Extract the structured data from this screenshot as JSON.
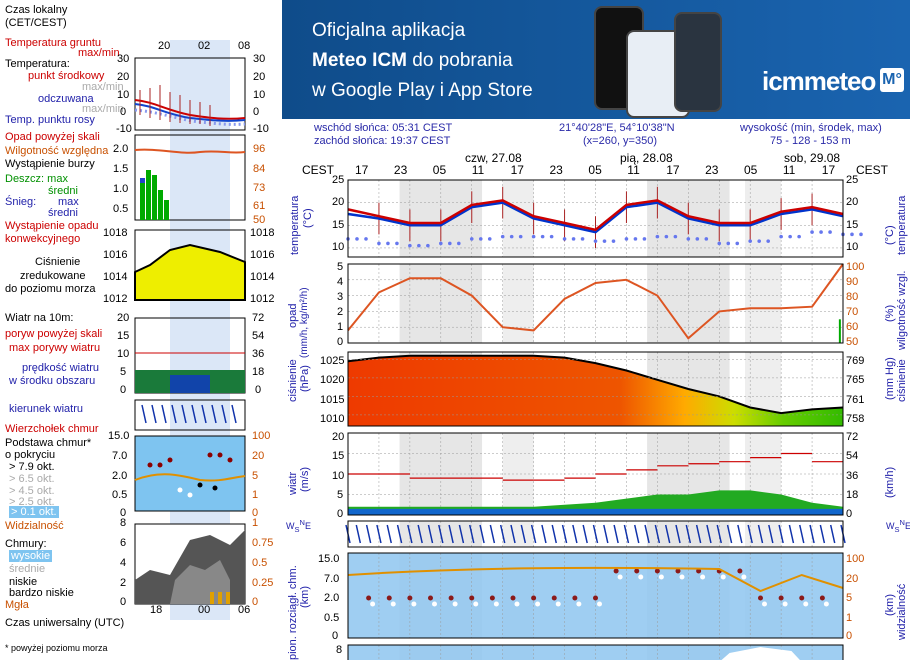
{
  "banner": {
    "line1": "Oficjalna aplikacja",
    "line2_bold": "Meteo ICM",
    "line2_rest": " do pobrania",
    "line3": "w Google Play i App Store",
    "logo": "icmmeteo",
    "logo_badge": "M°"
  },
  "info": {
    "sunrise": "wschód słońca: 05:31 CEST",
    "sunset": "zachód słońca: 19:37 CEST",
    "coords": "21°40'28\"E, 54°10'38\"N",
    "grid": "(x=260,  y=350)",
    "elev_label": "wysokość (min, środek, max)",
    "elev_values": "75 - 128 - 153 m"
  },
  "legend": {
    "time_local": "Czas lokalny",
    "time_local2": "(CET/CEST)",
    "ground_temp": "Temperatura gruntu",
    "ground_temp2": "max/min",
    "temperature": "Temperatura:",
    "mid_point": "punkt środkowy",
    "max_min": "max/min",
    "felt": "odczuwana",
    "felt_maxmin": "max/min",
    "dew_point": "Temp. punktu rosy",
    "precip_above": "Opad powyżej skali",
    "humidity": "Wilgotność względna",
    "storm": "Wystąpienie burzy",
    "rain": "Deszcz: max",
    "rain_mid": "średni",
    "snow": "Śnieg:",
    "snow_max": "max",
    "snow_mid": "średni",
    "convective": "Wystąpienie opadu",
    "convective2": "konwekcyjnego",
    "pressure1": "Ciśnienie",
    "pressure2": "zredukowane",
    "pressure3": "do poziomu morza",
    "wind_at": "Wiatr na 10m:",
    "gust_above": "poryw powyżej skali",
    "gust_max": "max porywy wiatru",
    "wind_speed": "prędkość wiatru",
    "wind_speed2": "w środku obszaru",
    "wind_dir": "kierunek wiatru",
    "cloud_top": "Wierzchołek chmur",
    "cloud_base": "Podstawa chmur*",
    "cloud_base2": "o pokryciu",
    "c79": "> 7.9 okt.",
    "c65": "> 6.5 okt.",
    "c45": "> 4.5 okt.",
    "c25": "> 2.5 okt.",
    "c01": "> 0.1 okt.",
    "visibility": "Widzialność",
    "clouds": "Chmury:",
    "high": "wysokie",
    "mid": "średnie",
    "low": "niskie",
    "very_low": "bardzo niskie",
    "fog": "Mgła",
    "utc": "Czas uniwersalny (UTC)",
    "footnote": "* powyżej poziomu morza"
  },
  "mini_axes": {
    "top_ticks": [
      "20",
      "02",
      "08"
    ],
    "bottom_ticks": [
      "18",
      "00",
      "06"
    ],
    "temp_left": [
      "30",
      "20",
      "10",
      "0",
      "-10"
    ],
    "temp_right": [
      "30",
      "20",
      "10",
      "0",
      "-10"
    ],
    "precip_left": [
      "2.0",
      "1.5",
      "1.0",
      "0.5"
    ],
    "precip_right": [
      "96",
      "84",
      "73",
      "61",
      "50"
    ],
    "press_left": [
      "1018",
      "1016",
      "1014",
      "1012"
    ],
    "press_right": [
      "1018",
      "1016",
      "1014",
      "1012"
    ],
    "wind_left": [
      "20",
      "15",
      "10",
      "5",
      "0"
    ],
    "wind_right": [
      "72",
      "54",
      "36",
      "18",
      "0"
    ],
    "cbase_left": [
      "15.0",
      "7.0",
      "2.0",
      "0.5",
      "0"
    ],
    "cbase_right": [
      "100",
      "20",
      "5",
      "1",
      "0"
    ],
    "cloud_left": [
      "8",
      "6",
      "4",
      "2",
      "0"
    ],
    "cloud_right": [
      "1",
      "0.75",
      "0.5",
      "0.25",
      "0"
    ]
  },
  "main": {
    "tz": "CEST",
    "days": [
      "czw, 27.08",
      "pią, 28.08",
      "sob, 29.08"
    ],
    "hours": [
      "17",
      "23",
      "05",
      "11",
      "17",
      "23",
      "05",
      "11",
      "17",
      "23",
      "05",
      "11",
      "17"
    ],
    "temp_title": "temperatura",
    "temp_unit": "(°C)",
    "temp_ticks": [
      "25",
      "20",
      "15",
      "10"
    ],
    "precip_title": "opad",
    "precip_unit": "(mm/h, kg/m²/h)",
    "precip_ticks": [
      "5",
      "4",
      "3",
      "2",
      "1",
      "0"
    ],
    "hum_title": "wilgotność wzgl.",
    "hum_unit": "(%)",
    "hum_ticks": [
      "100",
      "90",
      "80",
      "70",
      "60",
      "50"
    ],
    "press_title": "ciśnienie",
    "press_unit": "(hPa)",
    "press_ticks": [
      "1025",
      "1020",
      "1015",
      "1010"
    ],
    "press_mm_unit": "(mm Hg)",
    "press_mm_ticks": [
      "769",
      "765",
      "761",
      "758"
    ],
    "wind_title": "wiatr",
    "wind_unit": "(m/s)",
    "wind_ticks": [
      "20",
      "15",
      "10",
      "5",
      "0"
    ],
    "wind_kmh_unit": "(km/h)",
    "wind_kmh_ticks": [
      "72",
      "54",
      "36",
      "18",
      "0"
    ],
    "cloud_title": "pion. rozciągł. chm.",
    "cloud_unit": "(km)",
    "cloud_ticks": [
      "15.0",
      "7.0",
      "2.0",
      "0.5",
      "0"
    ],
    "vis_title": "widzialność",
    "vis_unit": "(km)",
    "vis_ticks": [
      "100",
      "20",
      "5",
      "1",
      "0"
    ],
    "bottom_tick": "8"
  },
  "chart_data": [
    {
      "type": "line",
      "title": "temperatura",
      "ylabel": "(°C)",
      "ylim": [
        8,
        25
      ],
      "x_hours": [
        0,
        3,
        6,
        9,
        12,
        15,
        18,
        21,
        24,
        27,
        30,
        33,
        36,
        39,
        42,
        45,
        48
      ],
      "series": [
        {
          "name": "punkt środkowy",
          "values": [
            18.5,
            17,
            15.5,
            15.5,
            19.5,
            20.5,
            17,
            15.5,
            14,
            19.5,
            20.5,
            17,
            15.5,
            15.5,
            18,
            19,
            17.5
          ]
        },
        {
          "name": "odczuwana",
          "values": [
            17.5,
            16.5,
            15,
            15,
            19,
            20,
            16.5,
            15,
            13.5,
            19,
            20,
            16.5,
            15,
            15,
            17.5,
            18.5,
            17
          ]
        },
        {
          "name": "Temp. punktu rosy",
          "values": [
            12,
            11,
            10.5,
            11,
            12,
            12.5,
            12.5,
            12,
            11.5,
            12,
            12.5,
            12,
            11,
            11.5,
            12.5,
            13.5,
            13
          ]
        }
      ]
    },
    {
      "type": "line",
      "title": "wilgotność wzgl.",
      "ylabel": "(%)",
      "ylim": [
        50,
        100
      ],
      "x_hours": [
        0,
        3,
        6,
        9,
        12,
        15,
        18,
        21,
        24,
        27,
        30,
        33,
        36,
        39,
        42,
        45,
        48
      ],
      "series": [
        {
          "name": "wilgotność",
          "values": [
            58,
            82,
            91,
            91,
            80,
            60,
            58,
            78,
            88,
            90,
            80,
            53,
            70,
            72,
            72,
            73,
            100
          ]
        }
      ]
    },
    {
      "type": "area",
      "title": "ciśnienie",
      "ylabel": "(hPa)",
      "ylim": [
        1007,
        1027
      ],
      "x_hours": [
        0,
        3,
        6,
        9,
        12,
        15,
        18,
        21,
        24,
        27,
        30,
        33,
        36,
        39,
        42,
        45,
        48
      ],
      "series": [
        {
          "name": "ciśnienie",
          "values": [
            1024.5,
            1025.5,
            1026,
            1026,
            1026,
            1026,
            1026,
            1025.5,
            1024,
            1022,
            1019.5,
            1017,
            1015,
            1012,
            1010.5,
            1011.5,
            1012
          ]
        }
      ]
    },
    {
      "type": "line",
      "title": "wiatr",
      "ylabel": "(m/s)",
      "ylim": [
        0,
        20
      ],
      "x_hours": [
        0,
        3,
        6,
        9,
        12,
        15,
        18,
        21,
        24,
        27,
        30,
        33,
        36,
        39,
        42,
        45,
        48
      ],
      "series": [
        {
          "name": "max porywy wiatru",
          "values": [
            10,
            10,
            9,
            9,
            9,
            8.5,
            8.5,
            9,
            10,
            11,
            12,
            12.5,
            13,
            14,
            15,
            13,
            12
          ]
        },
        {
          "name": "prędkość wiatru",
          "values": [
            2,
            2,
            2,
            2,
            2,
            2,
            2,
            2.5,
            3,
            4,
            5,
            5,
            6,
            6,
            5,
            3,
            2
          ]
        }
      ]
    }
  ],
  "colors": {
    "banner": "#1a64b0",
    "temp_line": "#cc0000",
    "felt_line": "#0033cc",
    "dew_points": "#6677ee",
    "humidity_line": "#dd5522",
    "wind_green": "#22aa22",
    "wind_blue": "#1166cc",
    "sky_blue": "#8ec5f0"
  }
}
